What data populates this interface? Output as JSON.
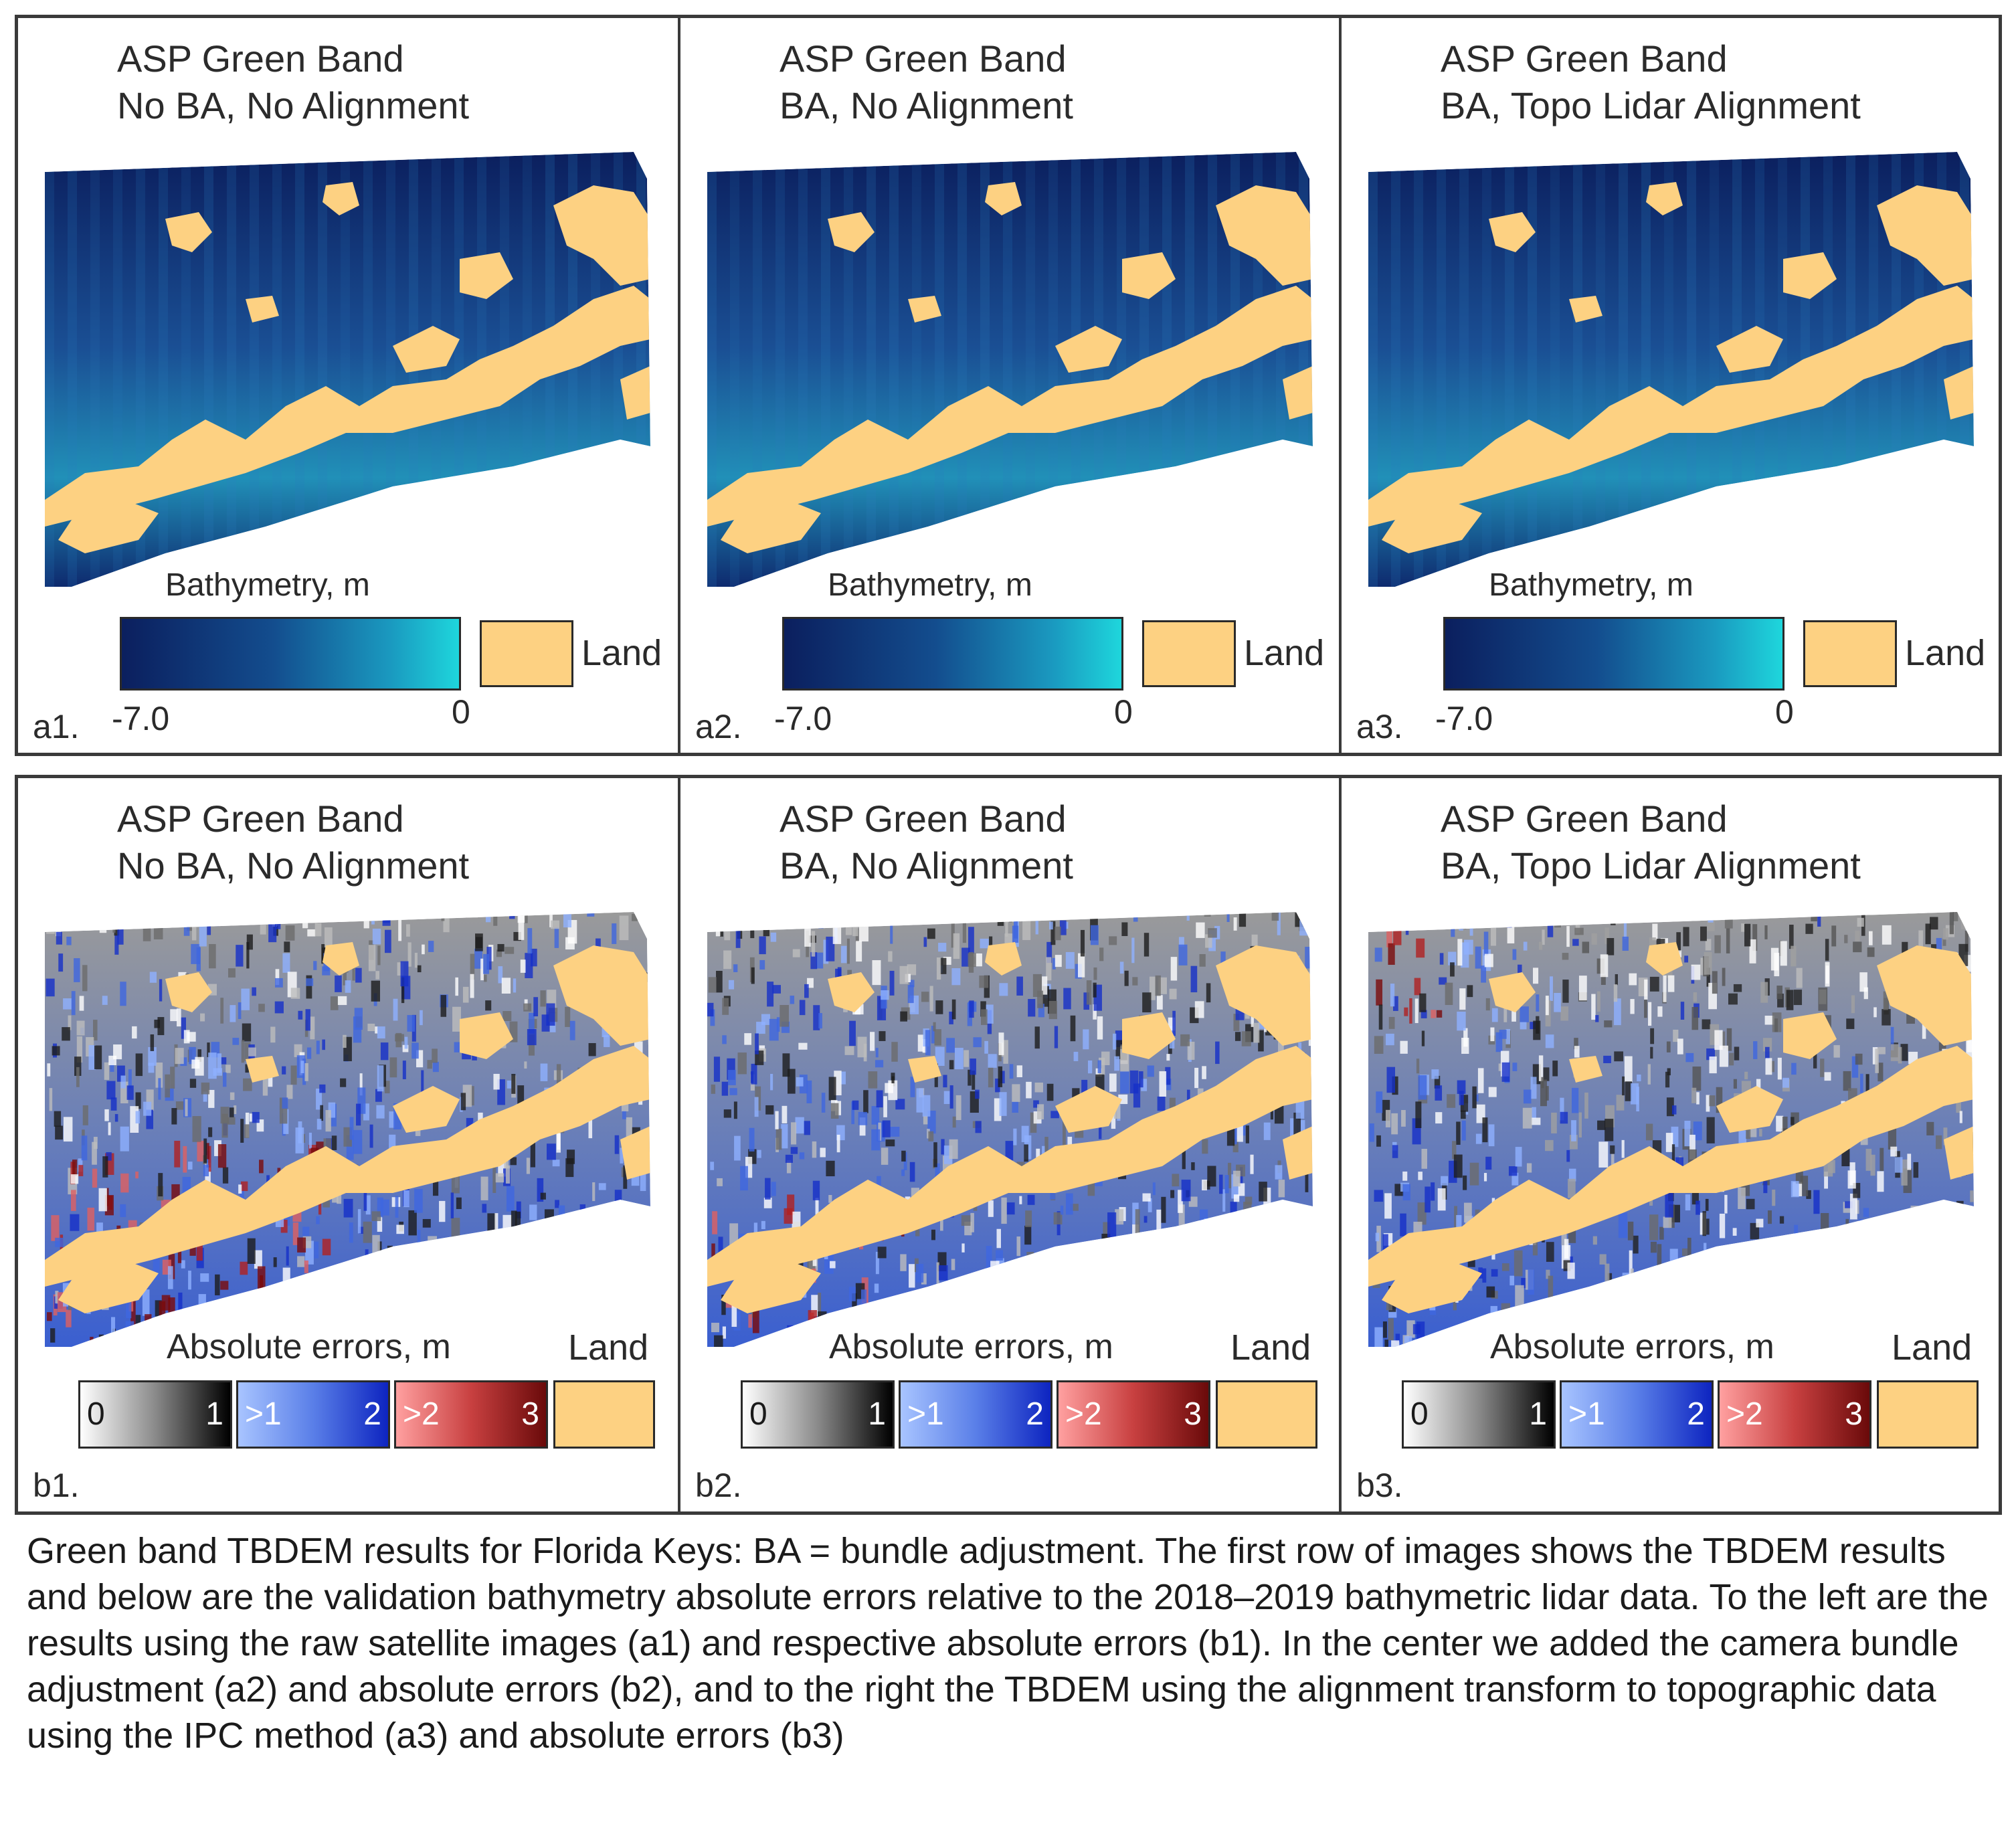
{
  "colors": {
    "land": "#fdd182",
    "deep_water": "#0b1f5e",
    "shallow_water": "#1ed6dc",
    "error_0_1": "#000000",
    "error_1_2": "#0d24c0",
    "error_2_3": "#6a0a0a"
  },
  "row_a": {
    "legend_title": "Bathymetry, m",
    "min_label": "-7.0",
    "max_label": "0",
    "land_label": "Land",
    "panels": [
      {
        "title_line1": "ASP Green Band",
        "title_line2": "No BA, No Alignment",
        "label": "a1."
      },
      {
        "title_line1": "ASP Green Band",
        "title_line2": "BA, No Alignment",
        "label": "a2."
      },
      {
        "title_line1": "ASP Green Band",
        "title_line2": "BA, Topo Lidar Alignment",
        "label": "a3."
      }
    ]
  },
  "row_b": {
    "legend_title": "Absolute errors, m",
    "land_label": "Land",
    "ranges": [
      {
        "lo": "0",
        "hi": "1"
      },
      {
        "lo": ">1",
        "hi": "2"
      },
      {
        "lo": ">2",
        "hi": "3"
      }
    ],
    "panels": [
      {
        "title_line1": "ASP Green Band",
        "title_line2": "No BA, No Alignment",
        "label": "b1."
      },
      {
        "title_line1": "ASP Green Band",
        "title_line2": "BA, No Alignment",
        "label": "b2."
      },
      {
        "title_line1": "ASP Green Band",
        "title_line2": "BA, Topo Lidar Alignment",
        "label": "b3."
      }
    ]
  },
  "caption": "Green band TBDEM results for Florida Keys: BA = bundle adjustment. The first row of images shows the TBDEM results and below are the validation bathymetry absolute errors relative to the 2018–2019 bathymetric lidar data. To the left are the results using the raw satellite images (a1) and respective absolute errors (b1). In the center we added the camera bundle adjustment (a2) and absolute errors (b2), and to the right the TBDEM using the alignment transform to topographic data using the IPC method (a3) and absolute errors (b3)"
}
